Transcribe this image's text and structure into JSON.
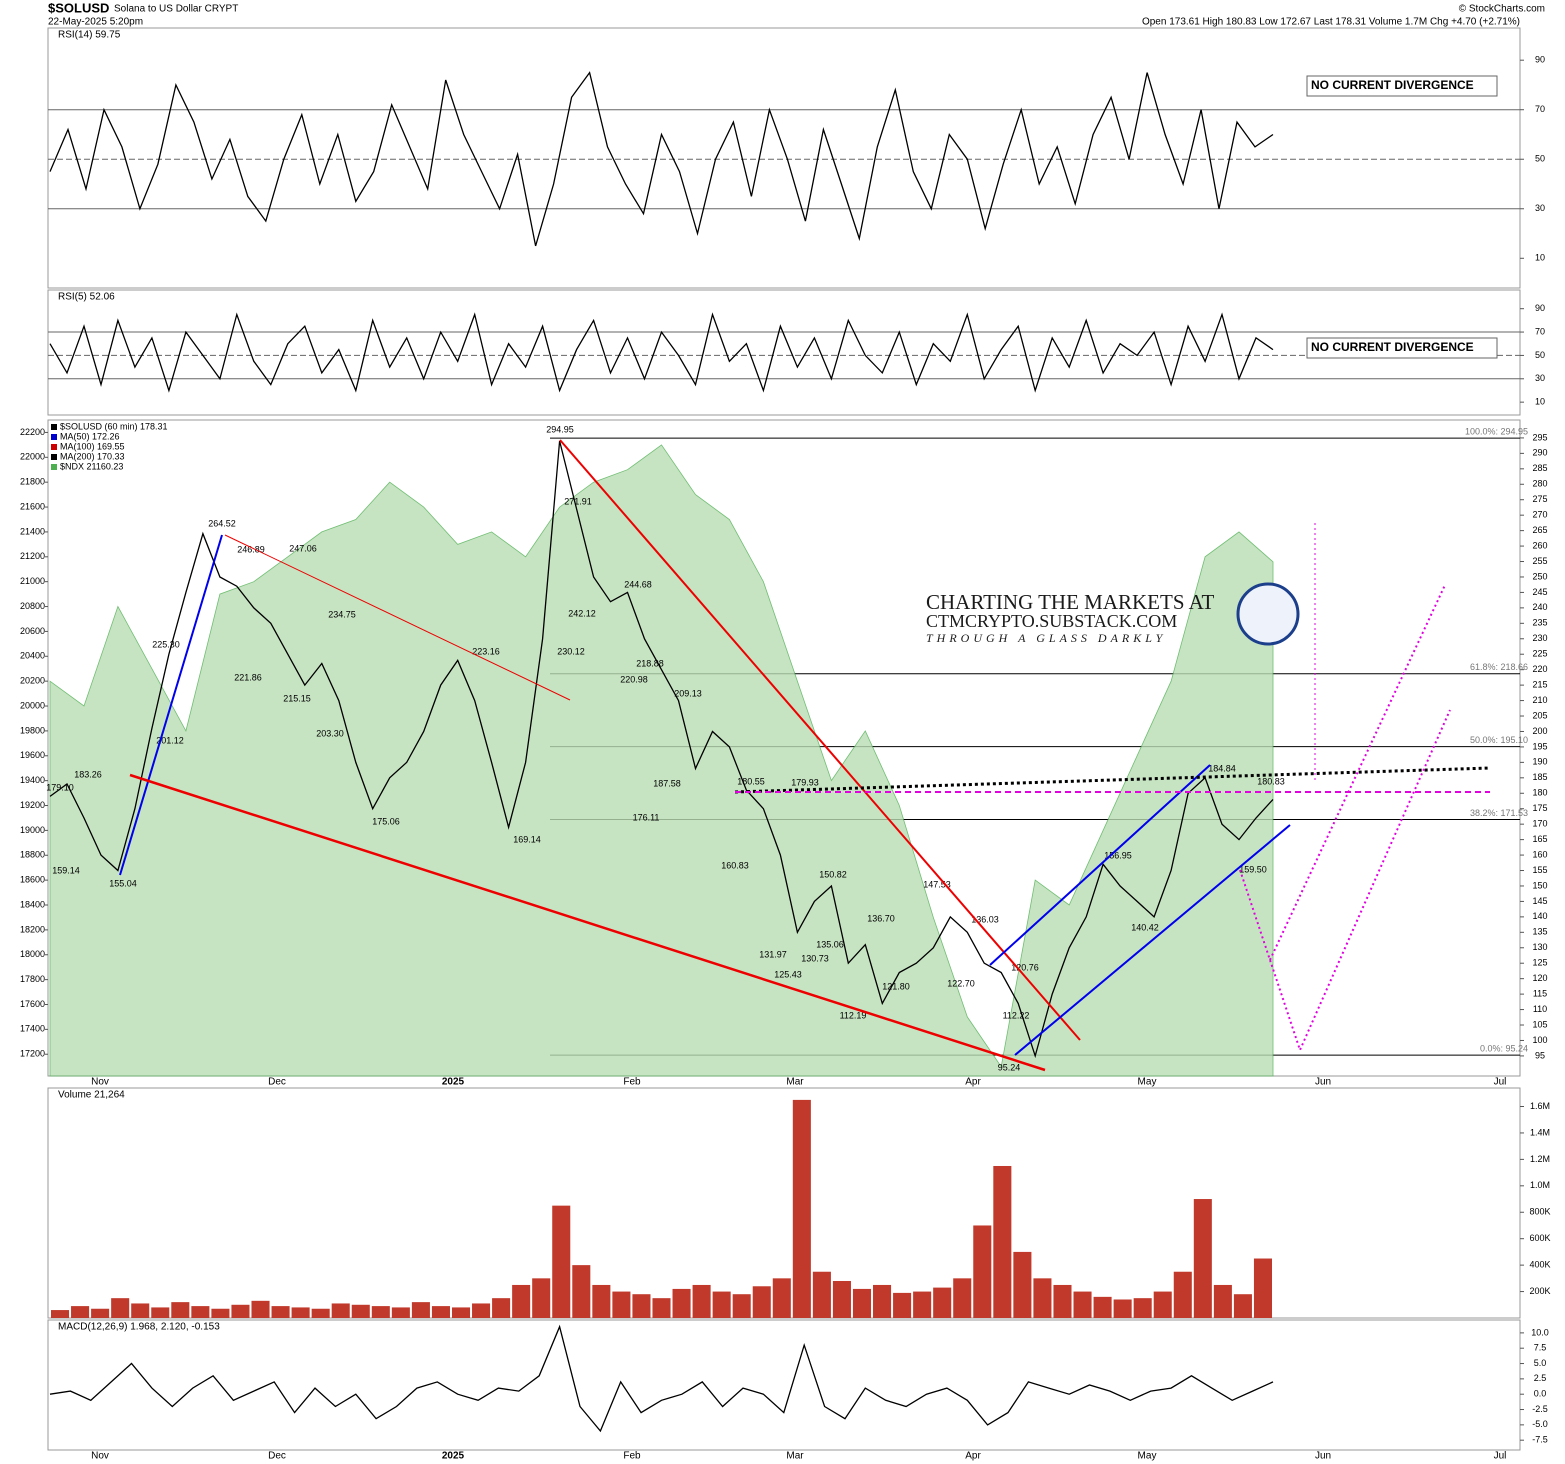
{
  "header": {
    "symbol": "$SOLUSD",
    "name": "Solana to US Dollar  CRYPT",
    "date": "22-May-2025 5:20pm",
    "quote": "Open 173.61  High 180.83  Low 172.67  Last 178.31  Volume 1.7M  Chg +4.70 (+2.71%)",
    "credit": "© StockCharts.com"
  },
  "watermark": [
    "CHARTING THE MARKETS AT",
    "CTMCRYPTO.SUBSTACK.COM",
    "THROUGH A GLASS DARKLY"
  ],
  "x_axis_labels": [
    "Nov",
    "Dec",
    "2025",
    "Feb",
    "Mar",
    "Apr",
    "May",
    "Jun",
    "Jul"
  ],
  "chart_data": [
    {
      "type": "line",
      "title": "RSI(14) 59.75",
      "ylim": [
        -2,
        103
      ],
      "yticks": [
        10,
        30,
        50,
        70,
        90
      ],
      "reference_lines": [
        30,
        50,
        70
      ],
      "annotation": "NO CURRENT DIVERGENCE",
      "series": [
        {
          "name": "RSI(14)",
          "color": "#000000",
          "values": [
            45,
            62,
            38,
            70,
            55,
            30,
            48,
            80,
            65,
            42,
            58,
            35,
            25,
            50,
            68,
            40,
            60,
            33,
            45,
            72,
            55,
            38,
            82,
            60,
            45,
            30,
            52,
            15,
            40,
            75,
            85,
            55,
            40,
            28,
            60,
            45,
            20,
            50,
            65,
            35,
            70,
            50,
            25,
            62,
            40,
            18,
            55,
            78,
            45,
            30,
            60,
            50,
            22,
            48,
            70,
            40,
            55,
            32,
            60,
            75,
            50,
            85,
            60,
            40,
            70,
            30,
            65,
            55,
            60
          ]
        }
      ]
    },
    {
      "type": "line",
      "title": "RSI(5) 52.06",
      "ylim": [
        -1,
        106
      ],
      "yticks": [
        10,
        30,
        50,
        70,
        90
      ],
      "reference_lines": [
        30,
        50,
        70
      ],
      "annotation": "NO CURRENT DIVERGENCE",
      "series": [
        {
          "name": "RSI(5)",
          "color": "#000000",
          "values": [
            60,
            35,
            75,
            25,
            80,
            40,
            65,
            20,
            70,
            50,
            30,
            85,
            45,
            25,
            60,
            75,
            35,
            55,
            20,
            80,
            40,
            65,
            30,
            70,
            45,
            85,
            25,
            60,
            40,
            75,
            20,
            55,
            80,
            35,
            65,
            30,
            70,
            50,
            25,
            85,
            45,
            60,
            20,
            75,
            40,
            65,
            30,
            80,
            50,
            35,
            70,
            25,
            60,
            45,
            85,
            30,
            55,
            75,
            20,
            65,
            40,
            80,
            35,
            60,
            50,
            70,
            25,
            75,
            45,
            85,
            30,
            65,
            55
          ]
        }
      ]
    },
    {
      "type": "line",
      "ylim": [
        88.5,
        300.8
      ],
      "y2lim": [
        17025,
        22300
      ],
      "yticks": [
        95,
        100,
        105,
        110,
        115,
        120,
        125,
        130,
        135,
        140,
        145,
        150,
        155,
        160,
        165,
        170,
        175,
        180,
        185,
        190,
        195,
        200,
        205,
        210,
        215,
        220,
        225,
        230,
        235,
        240,
        245,
        250,
        255,
        260,
        265,
        270,
        275,
        280,
        285,
        290,
        295
      ],
      "y2ticks": [
        17200,
        17400,
        17600,
        17800,
        18000,
        18200,
        18400,
        18600,
        18800,
        19000,
        19200,
        19400,
        19600,
        19800,
        20000,
        20200,
        20400,
        20600,
        20800,
        21000,
        21200,
        21400,
        21600,
        21800,
        22000,
        22200
      ],
      "series": [
        {
          "name": "$NDX 21160.23",
          "color": "#4caf50",
          "axis": "y2",
          "values": [
            20200,
            20000,
            20800,
            20300,
            19800,
            20900,
            21000,
            21200,
            21400,
            21500,
            21800,
            21600,
            21300,
            21400,
            21200,
            21600,
            21800,
            21900,
            22100,
            21700,
            21500,
            21000,
            20200,
            19400,
            19800,
            19200,
            18300,
            17500,
            17100,
            18600,
            18400,
            19000,
            19600,
            20200,
            21200,
            21400,
            21160
          ]
        },
        {
          "name": "$SOLUSD (60 min) 178.31",
          "color": "#000000",
          "values": [
            179,
            183,
            172,
            160,
            155,
            175,
            201,
            225,
            245,
            264,
            250,
            247,
            240,
            235,
            225,
            215,
            222,
            210,
            190,
            175,
            185,
            190,
            200,
            215,
            223,
            210,
            190,
            169,
            190,
            230,
            294,
            272,
            250,
            242,
            245,
            230,
            220,
            210,
            188,
            200,
            195,
            181,
            175,
            160,
            135,
            145,
            150,
            125,
            131,
            112,
            122,
            125,
            130,
            140,
            135,
            125,
            122,
            112,
            95,
            115,
            130,
            140,
            157,
            150,
            145,
            140,
            155,
            180,
            185,
            170,
            165,
            172,
            178
          ]
        }
      ],
      "legend_extra": [
        {
          "name": "MA(50) 172.26",
          "color": "#0000cc"
        },
        {
          "name": "MA(100) 169.55",
          "color": "#cc0000"
        },
        {
          "name": "MA(200) 170.33",
          "color": "#000000"
        }
      ],
      "fib": [
        {
          "label": "100.0%: 294.95",
          "value": 294.95
        },
        {
          "label": "61.8%: 218.66",
          "value": 218.66
        },
        {
          "label": "50.0%: 195.10",
          "value": 195.1
        },
        {
          "label": "38.2%: 171.53",
          "value": 171.53
        },
        {
          "label": "0.0%: 95.24",
          "value": 95.24
        }
      ],
      "price_labels": [
        {
          "value": 179.1,
          "label": "179.10"
        },
        159.14,
        183.26,
        155.04,
        201.12,
        {
          "value": 225.3,
          "label": "225.30"
        },
        264.52,
        246.89,
        247.06,
        221.86,
        215.15,
        234.75,
        {
          "value": 203.3,
          "label": "203.30"
        },
        175.06,
        223.16,
        169.14,
        294.95,
        271.91,
        242.12,
        230.12,
        244.68,
        220.98,
        218.88,
        209.13,
        187.58,
        176.11,
        180.55,
        179.93,
        160.83,
        150.82,
        131.97,
        125.43,
        130.73,
        135.06,
        {
          "value": 136.7,
          "label": "136.70"
        },
        112.19,
        {
          "value": 121.8,
          "label": "121.80"
        },
        147.53,
        136.03,
        {
          "value": 122.7,
          "label": "122.70"
        },
        120.76,
        112.22,
        95.24,
        156.95,
        140.42,
        184.84,
        180.83,
        {
          "value": 159.5,
          "label": "159.50"
        }
      ]
    },
    {
      "type": "bar",
      "title": "Volume 21,264",
      "ylim": [
        0,
        1740000
      ],
      "yticks": [
        {
          "value": 200000,
          "label": "200K"
        },
        {
          "value": 400000,
          "label": "400K"
        },
        {
          "value": 600000,
          "label": "600K"
        },
        {
          "value": 800000,
          "label": "800K"
        },
        {
          "value": 1000000,
          "label": "1.0M"
        },
        {
          "value": 1200000,
          "label": "1.2M"
        },
        {
          "value": 1400000,
          "label": "1.4M"
        },
        {
          "value": 1600000,
          "label": "1.6M"
        }
      ],
      "color": "#c0392b",
      "values": [
        60000,
        90000,
        70000,
        150000,
        110000,
        80000,
        120000,
        90000,
        70000,
        100000,
        130000,
        90000,
        80000,
        70000,
        110000,
        100000,
        90000,
        80000,
        120000,
        90000,
        80000,
        110000,
        150000,
        250000,
        300000,
        850000,
        400000,
        250000,
        200000,
        180000,
        150000,
        220000,
        250000,
        200000,
        180000,
        240000,
        300000,
        1650000,
        350000,
        280000,
        220000,
        250000,
        190000,
        200000,
        230000,
        300000,
        700000,
        1150000,
        500000,
        300000,
        250000,
        200000,
        160000,
        140000,
        150000,
        200000,
        350000,
        900000,
        250000,
        180000,
        450000
      ]
    },
    {
      "type": "line",
      "title": "MACD(12,26,9) 1.968, 2.120, -0.153",
      "ylim": [
        -9.1,
        12.1
      ],
      "yticks": [
        {
          "value": -7.5,
          "label": "-7.5"
        },
        {
          "value": -5,
          "label": "-5.0"
        },
        {
          "value": -2.5,
          "label": "-2.5"
        },
        {
          "value": 0,
          "label": "0.0"
        },
        {
          "value": 2.5,
          "label": "2.5"
        },
        {
          "value": 5,
          "label": "5.0"
        },
        {
          "value": 7.5,
          "label": "7.5"
        },
        {
          "value": 10,
          "label": "10.0"
        }
      ],
      "series": [
        {
          "name": "MACD",
          "color": "#000000",
          "values": [
            0,
            0.5,
            -1,
            2,
            5,
            1,
            -2,
            1,
            3,
            -1,
            0.5,
            2,
            -3,
            1,
            -2,
            0,
            -4,
            -2,
            1,
            2,
            0,
            -1,
            1,
            0.5,
            3,
            11,
            -2,
            -6,
            2,
            -3,
            -1,
            0,
            2,
            -2,
            1,
            0,
            -3,
            8,
            -2,
            -4,
            1,
            -1,
            -2,
            0,
            1,
            -1,
            -5,
            -3,
            2,
            1,
            0,
            1.5,
            0.5,
            -1,
            0.5,
            1,
            3,
            1,
            -1,
            0.5,
            2
          ]
        }
      ]
    }
  ]
}
